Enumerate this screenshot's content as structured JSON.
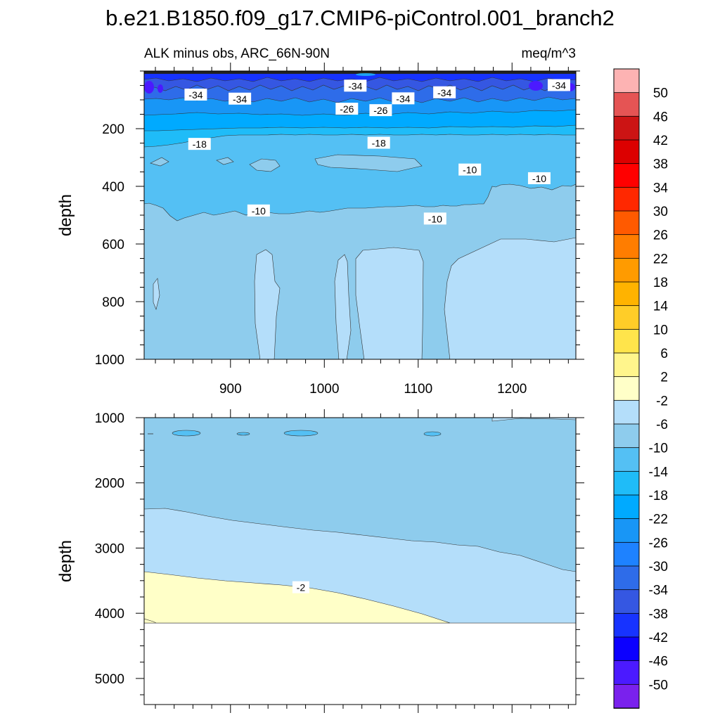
{
  "title": "b.e21.B1850.f09_g17.CMIP6-piControl.001_branch2",
  "subtitle_left": "ALK minus obs, ARC_66N-90N",
  "subtitle_right": "meq/m^3",
  "ylabel": "depth",
  "chart_data": [
    {
      "type": "contour",
      "panel": "upper",
      "title": "ALK minus obs, ARC_66N-90N",
      "units": "meq/m^3",
      "ylabel": "depth",
      "xlim": [
        808,
        1268
      ],
      "ylim": [
        1000,
        0
      ],
      "x_ticks": [
        900,
        1000,
        1100,
        1200
      ],
      "y_ticks": [
        200,
        400,
        600,
        800,
        1000
      ],
      "contour_labels": [
        {
          "text": "-34",
          "x": 1033,
          "y": 52
        },
        {
          "text": "-34",
          "x": 863,
          "y": 83
        },
        {
          "text": "-34",
          "x": 910,
          "y": 97
        },
        {
          "text": "-34",
          "x": 1084,
          "y": 96
        },
        {
          "text": "-34",
          "x": 1128,
          "y": 75
        },
        {
          "text": "-34",
          "x": 1250,
          "y": 50
        },
        {
          "text": "-26",
          "x": 1024,
          "y": 132
        },
        {
          "text": "-26",
          "x": 1060,
          "y": 137
        },
        {
          "text": "-18",
          "x": 867,
          "y": 254
        },
        {
          "text": "-18",
          "x": 1058,
          "y": 250
        },
        {
          "text": "-10",
          "x": 1155,
          "y": 343
        },
        {
          "text": "-10",
          "x": 1229,
          "y": 373
        },
        {
          "text": "-10",
          "x": 930,
          "y": 485
        },
        {
          "text": "-10",
          "x": 1118,
          "y": 513
        }
      ]
    },
    {
      "type": "contour",
      "panel": "lower",
      "ylabel": "depth",
      "xlim": [
        808,
        1268
      ],
      "ylim": [
        5400,
        1000
      ],
      "y_ticks": [
        1000,
        2000,
        3000,
        4000,
        5000
      ],
      "contour_labels": [
        {
          "text": "-2",
          "x": 975,
          "y": 3606
        }
      ]
    }
  ],
  "colorbar": {
    "levels": [
      "50",
      "46",
      "42",
      "38",
      "34",
      "30",
      "26",
      "22",
      "18",
      "14",
      "10",
      "6",
      "2",
      "-2",
      "-6",
      "-10",
      "-14",
      "-18",
      "-22",
      "-26",
      "-30",
      "-34",
      "-38",
      "-42",
      "-46",
      "-50"
    ],
    "colors": [
      "#fdb3b3",
      "#e55454",
      "#cc1414",
      "#dc0000",
      "#ff0000",
      "#ff2800",
      "#ff5a00",
      "#ff7d00",
      "#ff9b00",
      "#ffb300",
      "#ffcd28",
      "#ffe44b",
      "#fff58c",
      "#ffffc8",
      "#b4defa",
      "#8ecced",
      "#54c0f4",
      "#1fbcf8",
      "#00aaff",
      "#1896f6",
      "#1e82ff",
      "#2e6ce9",
      "#3557e2",
      "#1733ff",
      "#0c00ff",
      "#4b1aff",
      "#7a21ed"
    ]
  }
}
